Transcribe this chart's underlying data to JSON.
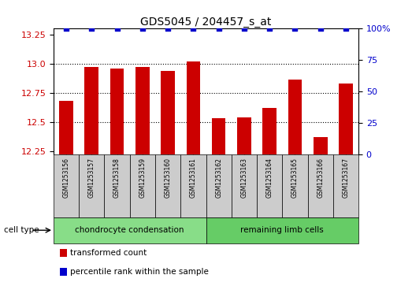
{
  "title": "GDS5045 / 204457_s_at",
  "samples": [
    "GSM1253156",
    "GSM1253157",
    "GSM1253158",
    "GSM1253159",
    "GSM1253160",
    "GSM1253161",
    "GSM1253162",
    "GSM1253163",
    "GSM1253164",
    "GSM1253165",
    "GSM1253166",
    "GSM1253167"
  ],
  "transformed_counts": [
    12.68,
    12.97,
    12.96,
    12.97,
    12.94,
    13.02,
    12.53,
    12.54,
    12.62,
    12.86,
    12.37,
    12.83
  ],
  "percentile_ranks": [
    100,
    100,
    100,
    100,
    100,
    100,
    100,
    100,
    100,
    100,
    100,
    100
  ],
  "bar_color": "#cc0000",
  "dot_color": "#0000cc",
  "ylim_left": [
    12.22,
    13.3
  ],
  "ylim_right": [
    0,
    100
  ],
  "yticks_left": [
    12.25,
    12.5,
    12.75,
    13.0,
    13.25
  ],
  "yticks_right": [
    0,
    25,
    50,
    75,
    100
  ],
  "dotted_lines": [
    13.0,
    12.75,
    12.5
  ],
  "cell_types": [
    {
      "label": "chondrocyte condensation",
      "start": 0,
      "end": 6,
      "color": "#88dd88"
    },
    {
      "label": "remaining limb cells",
      "start": 6,
      "end": 12,
      "color": "#66cc66"
    }
  ],
  "cell_type_label": "cell type",
  "legend": [
    {
      "label": "transformed count",
      "color": "#cc0000"
    },
    {
      "label": "percentile rank within the sample",
      "color": "#0000cc"
    }
  ],
  "sample_bg_color": "#cccccc",
  "plot_bg": "#ffffff",
  "fig_bg": "#ffffff"
}
